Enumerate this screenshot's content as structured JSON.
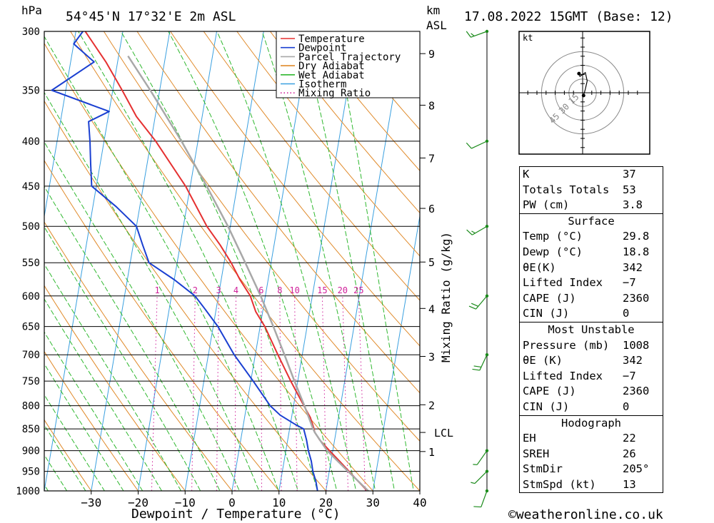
{
  "header": {
    "hpa_label": "hPa",
    "location": "54°45'N 17°32'E 2m ASL",
    "km_label": "km",
    "asl_label": "ASL",
    "datetime": "17.08.2022 15GMT (Base: 12)"
  },
  "colors": {
    "temperature": "#e53030",
    "dewpoint": "#1a3fd1",
    "parcel": "#a8a8a8",
    "dry_adiabat": "#e08a2a",
    "wet_adiabat": "#2fb82f",
    "isotherm": "#3aa0e0",
    "mixing_ratio": "#d0209a",
    "wind": "#1a8a1a"
  },
  "legend": [
    {
      "name": "Temperature",
      "color": "#e53030",
      "style": "solid"
    },
    {
      "name": "Dewpoint",
      "color": "#1a3fd1",
      "style": "solid"
    },
    {
      "name": "Parcel Trajectory",
      "color": "#a8a8a8",
      "style": "solid"
    },
    {
      "name": "Dry Adiabat",
      "color": "#e08a2a",
      "style": "solid"
    },
    {
      "name": "Wet Adiabat",
      "color": "#2fb82f",
      "style": "solid"
    },
    {
      "name": "Isotherm",
      "color": "#3aa0e0",
      "style": "solid"
    },
    {
      "name": "Mixing Ratio",
      "color": "#d0209a",
      "style": "dotted"
    }
  ],
  "chart_data": {
    "type": "line",
    "subtype": "skew-t log-p",
    "xlabel": "Dewpoint / Temperature (°C)",
    "ylabel_left": "hPa",
    "ylabel_right": "Mixing Ratio (g/kg)",
    "x_ticks": [
      -30,
      -20,
      -10,
      0,
      10,
      20,
      30,
      40
    ],
    "x_tick_labels": [
      "−30",
      "−20",
      "−10",
      "0",
      "10",
      "20",
      "30",
      "40"
    ],
    "pressure_levels": [
      300,
      350,
      400,
      450,
      500,
      550,
      600,
      650,
      700,
      750,
      800,
      850,
      900,
      950,
      1000
    ],
    "xlim_at_1000hPa": [
      -40,
      40
    ],
    "skew_degC_per_decade": 32,
    "km_ticks": [
      {
        "label": "1",
        "p": 902
      },
      {
        "label": "2",
        "p": 798
      },
      {
        "label": "3",
        "p": 703
      },
      {
        "label": "4",
        "p": 620
      },
      {
        "label": "5",
        "p": 549
      },
      {
        "label": "6",
        "p": 477
      },
      {
        "label": "7",
        "p": 418
      },
      {
        "label": "8",
        "p": 364
      },
      {
        "label": "9",
        "p": 318
      }
    ],
    "lcl": {
      "label": "LCL",
      "p": 858
    },
    "mixing_ratio_labels": [
      "1",
      "2",
      "3",
      "4",
      "6",
      "8",
      "10",
      "15",
      "20",
      "25"
    ],
    "mixing_ratio_values": [
      1,
      2,
      3,
      4,
      6,
      8,
      10,
      15,
      20,
      25
    ],
    "series": [
      {
        "name": "Temperature",
        "points": [
          [
            1008,
            29.8
          ],
          [
            1000,
            28.8
          ],
          [
            975,
            26.5
          ],
          [
            950,
            24.2
          ],
          [
            925,
            21.8
          ],
          [
            900,
            19.3
          ],
          [
            875,
            16.8
          ],
          [
            858,
            15.5
          ],
          [
            850,
            15.2
          ],
          [
            825,
            14.0
          ],
          [
            800,
            12.2
          ],
          [
            750,
            8.5
          ],
          [
            700,
            4.8
          ],
          [
            650,
            1.0
          ],
          [
            625,
            -1.5
          ],
          [
            600,
            -3.2
          ],
          [
            575,
            -6.0
          ],
          [
            550,
            -8.5
          ],
          [
            525,
            -11.5
          ],
          [
            500,
            -15.0
          ],
          [
            450,
            -21.0
          ],
          [
            400,
            -29.0
          ],
          [
            375,
            -34.0
          ],
          [
            350,
            -38.0
          ],
          [
            325,
            -42.5
          ],
          [
            300,
            -48.0
          ]
        ]
      },
      {
        "name": "Dewpoint",
        "points": [
          [
            1008,
            18.8
          ],
          [
            1000,
            18.2
          ],
          [
            975,
            17.5
          ],
          [
            950,
            16.5
          ],
          [
            925,
            15.8
          ],
          [
            900,
            14.8
          ],
          [
            875,
            14.0
          ],
          [
            850,
            13.0
          ],
          [
            840,
            11.0
          ],
          [
            820,
            7.5
          ],
          [
            800,
            5.0
          ],
          [
            750,
            0.5
          ],
          [
            700,
            -4.5
          ],
          [
            650,
            -9.0
          ],
          [
            620,
            -12.5
          ],
          [
            600,
            -15.0
          ],
          [
            575,
            -20.0
          ],
          [
            550,
            -26.0
          ],
          [
            525,
            -28.0
          ],
          [
            500,
            -30.0
          ],
          [
            475,
            -35.0
          ],
          [
            450,
            -41.0
          ],
          [
            425,
            -42.0
          ],
          [
            400,
            -43.0
          ],
          [
            380,
            -44.0
          ],
          [
            370,
            -40.0
          ],
          [
            350,
            -53.0
          ],
          [
            325,
            -45.0
          ],
          [
            310,
            -50.0
          ],
          [
            300,
            -48.5
          ]
        ]
      },
      {
        "name": "Parcel Trajectory",
        "points": [
          [
            1008,
            29.8
          ],
          [
            950,
            24.0
          ],
          [
            900,
            18.8
          ],
          [
            858,
            15.5
          ],
          [
            850,
            15.0
          ],
          [
            800,
            12.3
          ],
          [
            750,
            9.3
          ],
          [
            700,
            6.2
          ],
          [
            650,
            2.8
          ],
          [
            600,
            -1.0
          ],
          [
            550,
            -5.5
          ],
          [
            500,
            -10.5
          ],
          [
            450,
            -16.5
          ],
          [
            400,
            -23.5
          ],
          [
            350,
            -32.0
          ],
          [
            320,
            -38.0
          ]
        ]
      }
    ]
  },
  "wind": {
    "barbs": [
      {
        "p": 300,
        "dir": 250,
        "kt": 15
      },
      {
        "p": 400,
        "dir": 245,
        "kt": 12
      },
      {
        "p": 500,
        "dir": 240,
        "kt": 15
      },
      {
        "p": 600,
        "dir": 220,
        "kt": 20
      },
      {
        "p": 700,
        "dir": 205,
        "kt": 20
      },
      {
        "p": 900,
        "dir": 215,
        "kt": 8
      },
      {
        "p": 950,
        "dir": 225,
        "kt": 5
      },
      {
        "p": 1000,
        "dir": 200,
        "kt": 10
      }
    ]
  },
  "hodograph": {
    "unit_label": "kt",
    "ring_labels": [
      "15",
      "30",
      "45"
    ],
    "rings_kt": [
      15,
      30,
      45
    ],
    "points_kt": [
      [
        1,
        -3
      ],
      [
        3,
        4
      ],
      [
        5,
        13
      ],
      [
        3,
        22
      ],
      [
        -3,
        18
      ],
      [
        -4,
        21
      ]
    ]
  },
  "indices": {
    "general": [
      {
        "label": "K",
        "value": "37"
      },
      {
        "label": "Totals Totals",
        "value": "53"
      },
      {
        "label": "PW (cm)",
        "value": "3.8"
      }
    ],
    "surface": {
      "title": "Surface",
      "rows": [
        {
          "label": "Temp (°C)",
          "value": "29.8"
        },
        {
          "label": "Dewp (°C)",
          "value": "18.8"
        },
        {
          "label": "θE(K)",
          "value": "342"
        },
        {
          "label": "Lifted Index",
          "value": "−7"
        },
        {
          "label": "CAPE (J)",
          "value": "2360"
        },
        {
          "label": "CIN (J)",
          "value": "0"
        }
      ]
    },
    "most_unstable": {
      "title": "Most Unstable",
      "rows": [
        {
          "label": "Pressure (mb)",
          "value": "1008"
        },
        {
          "label": "θE (K)",
          "value": "342"
        },
        {
          "label": "Lifted Index",
          "value": "−7"
        },
        {
          "label": "CAPE (J)",
          "value": "2360"
        },
        {
          "label": "CIN (J)",
          "value": "0"
        }
      ]
    },
    "hodograph": {
      "title": "Hodograph",
      "rows": [
        {
          "label": "EH",
          "value": "22"
        },
        {
          "label": "SREH",
          "value": "26"
        },
        {
          "label": "StmDir",
          "value": "205°"
        },
        {
          "label": "StmSpd (kt)",
          "value": "13"
        }
      ]
    }
  },
  "footer": {
    "credit": "©weatheronline.co.uk"
  }
}
